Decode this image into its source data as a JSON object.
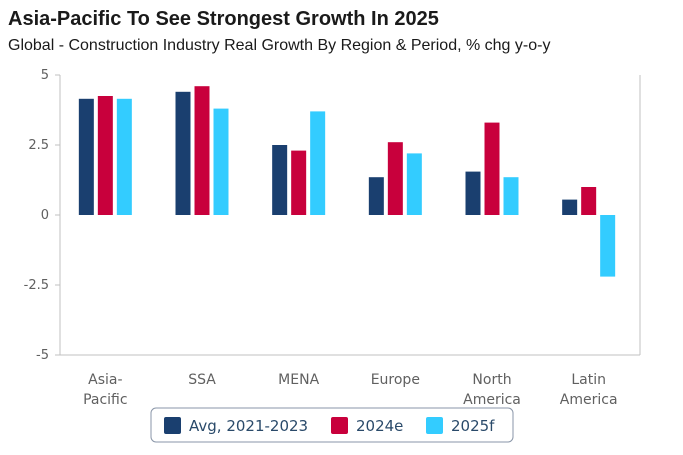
{
  "header": {
    "title": "Asia-Pacific To See Strongest Growth In 2025",
    "subtitle": "Global - Construction Industry Real Growth By Region & Period, % chg y-o-y"
  },
  "chart_data": {
    "type": "bar",
    "categories": [
      [
        "Asia-",
        "Pacific"
      ],
      [
        "SSA"
      ],
      [
        "MENA"
      ],
      [
        "Europe"
      ],
      [
        "North",
        "America"
      ],
      [
        "Latin",
        "America"
      ]
    ],
    "series": [
      {
        "name": "Avg, 2021-2023",
        "color": "#1a3f6f",
        "values": [
          4.15,
          4.4,
          2.5,
          1.35,
          1.55,
          0.55
        ]
      },
      {
        "name": "2024e",
        "color": "#c8003c",
        "values": [
          4.25,
          4.6,
          2.3,
          2.6,
          3.3,
          1.0
        ]
      },
      {
        "name": "2025f",
        "color": "#33ccff",
        "values": [
          4.15,
          3.8,
          3.7,
          2.2,
          1.35,
          -2.2
        ]
      }
    ],
    "y_ticks": [
      "5",
      "2.5",
      "0",
      "-2.5",
      "-5"
    ],
    "ylim": [
      -5,
      5
    ],
    "grid": false,
    "legend_position": "bottom-center"
  }
}
